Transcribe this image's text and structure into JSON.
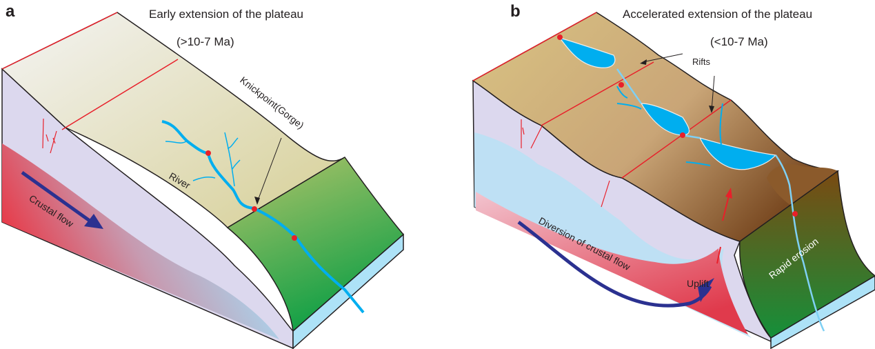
{
  "panel_a": {
    "letter": "a",
    "title": "Early extension of the plateau",
    "age": "(>10-7 Ma)",
    "labels": {
      "knickpoint": "Knickpoint(Gorge)",
      "river": "River",
      "crustal_flow": "Crustal flow"
    }
  },
  "panel_b": {
    "letter": "b",
    "title": "Accelerated extension of the plateau",
    "age": "(<10-7 Ma)",
    "labels": {
      "rifts": "Rifts",
      "diversion": "Diversion of crustal flow",
      "uplift": "Uplift",
      "rapid_erosion": "Rapid erosion"
    }
  },
  "colors": {
    "fault": "#e8202a",
    "river": "#00aeef",
    "flow_arrow": "#2b3190",
    "green": "#1a9a45",
    "plateau_a": "#d6d0a0",
    "plateau_b": "#c9a96a",
    "side": "#dcd8ee",
    "hot": "#e63946"
  }
}
